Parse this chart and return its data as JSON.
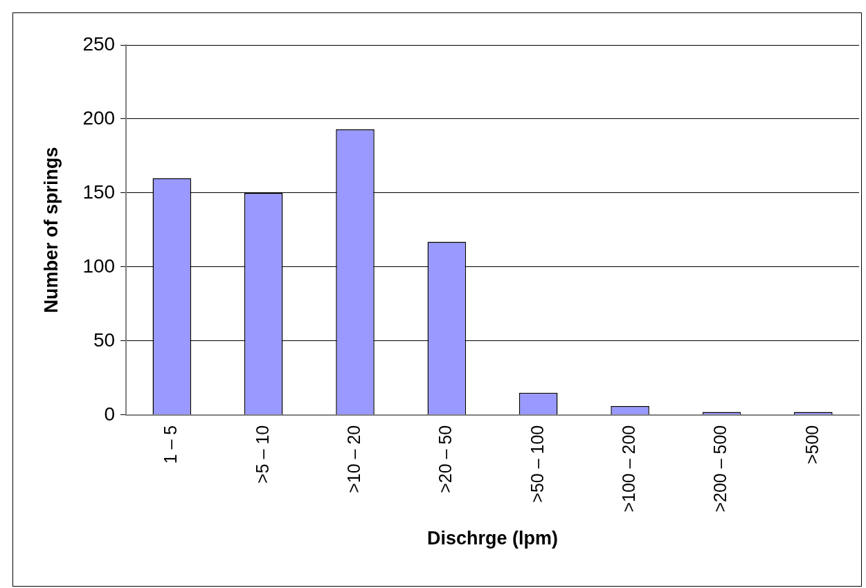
{
  "chart_data": {
    "type": "bar",
    "xlabel": "Dischrge (lpm)",
    "ylabel": "Number of springs",
    "categories": [
      "1 – 5",
      ">5 – 10",
      ">10 – 20",
      ">20 – 50",
      ">50 – 100",
      ">100 – 200",
      ">200 – 500",
      ">500"
    ],
    "values": [
      160,
      150,
      193,
      117,
      15,
      6,
      2,
      2
    ],
    "color": "#9999ff",
    "ylim": [
      0,
      250
    ],
    "yticks": [
      0,
      50,
      100,
      150,
      200,
      250
    ],
    "grid": "y",
    "legend": false
  }
}
